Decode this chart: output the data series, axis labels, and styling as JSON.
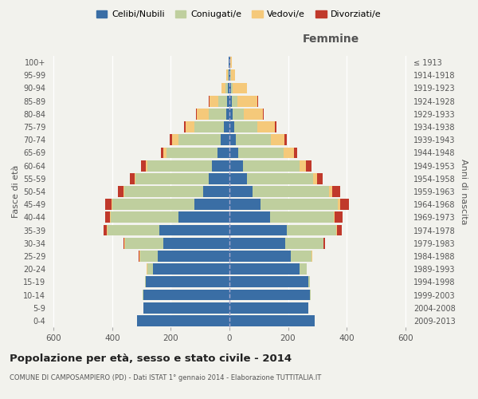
{
  "age_groups": [
    "0-4",
    "5-9",
    "10-14",
    "15-19",
    "20-24",
    "25-29",
    "30-34",
    "35-39",
    "40-44",
    "45-49",
    "50-54",
    "55-59",
    "60-64",
    "65-69",
    "70-74",
    "75-79",
    "80-84",
    "85-89",
    "90-94",
    "95-99",
    "100+"
  ],
  "birth_years": [
    "2009-2013",
    "2004-2008",
    "1999-2003",
    "1994-1998",
    "1989-1993",
    "1984-1988",
    "1979-1983",
    "1974-1978",
    "1969-1973",
    "1964-1968",
    "1959-1963",
    "1954-1958",
    "1949-1953",
    "1944-1948",
    "1939-1943",
    "1934-1938",
    "1929-1933",
    "1924-1928",
    "1919-1923",
    "1914-1918",
    "≤ 1913"
  ],
  "colors": {
    "celibi": "#3A6EA5",
    "coniugati": "#BFCF9E",
    "vedovi": "#F5C97A",
    "divorziati": "#C0392B"
  },
  "males": {
    "celibi": [
      315,
      295,
      295,
      285,
      260,
      245,
      225,
      240,
      175,
      120,
      90,
      70,
      60,
      40,
      30,
      20,
      12,
      8,
      5,
      3,
      2
    ],
    "coniugati": [
      0,
      0,
      2,
      2,
      20,
      60,
      130,
      175,
      230,
      280,
      270,
      250,
      220,
      175,
      145,
      100,
      60,
      30,
      8,
      2,
      0
    ],
    "vedovi": [
      0,
      0,
      0,
      0,
      2,
      2,
      3,
      5,
      2,
      2,
      3,
      4,
      5,
      10,
      20,
      30,
      40,
      30,
      15,
      5,
      2
    ],
    "divorziati": [
      0,
      0,
      0,
      0,
      0,
      2,
      5,
      10,
      18,
      22,
      18,
      15,
      18,
      10,
      8,
      5,
      2,
      2,
      0,
      0,
      0
    ]
  },
  "females": {
    "celibi": [
      290,
      270,
      275,
      270,
      240,
      210,
      190,
      195,
      140,
      105,
      80,
      60,
      45,
      30,
      22,
      15,
      10,
      8,
      5,
      3,
      2
    ],
    "coniugati": [
      0,
      0,
      2,
      4,
      25,
      70,
      130,
      170,
      215,
      265,
      260,
      225,
      195,
      155,
      120,
      80,
      40,
      18,
      5,
      2,
      0
    ],
    "vedovi": [
      0,
      0,
      0,
      0,
      0,
      2,
      2,
      3,
      5,
      8,
      12,
      15,
      20,
      35,
      45,
      60,
      65,
      70,
      50,
      15,
      5
    ],
    "divorziati": [
      0,
      0,
      0,
      0,
      0,
      2,
      5,
      15,
      25,
      30,
      25,
      18,
      20,
      12,
      8,
      5,
      2,
      2,
      0,
      0,
      0
    ]
  },
  "xlim": 620,
  "title_main": "Popolazione per età, sesso e stato civile - 2014",
  "title_sub": "COMUNE DI CAMPOSAMPIERO (PD) - Dati ISTAT 1° gennaio 2014 - Elaborazione TUTTITALIA.IT",
  "ylabel_left": "Fasce di età",
  "ylabel_right": "Anni di nascita",
  "xlabel_femmine": "Femmine",
  "legend_labels": [
    "Celibi/Nubili",
    "Coniugati/e",
    "Vedovi/e",
    "Divorziati/e"
  ],
  "bg_color": "#F2F2ED",
  "bar_height": 0.85
}
